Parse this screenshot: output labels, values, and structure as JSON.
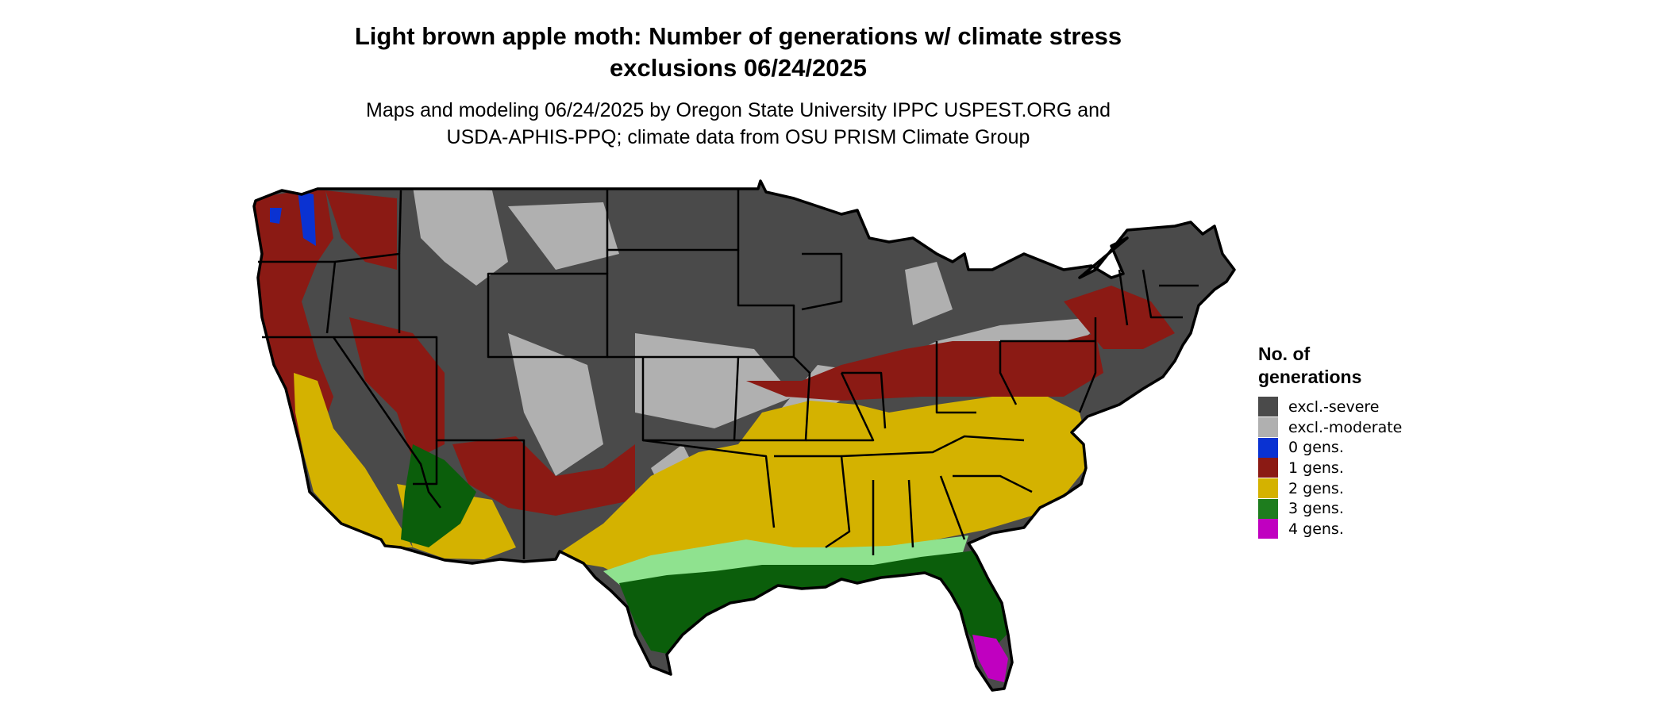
{
  "title": {
    "line1": "Light brown apple moth: Number of generations w/ climate stress",
    "line2": "exclusions 06/24/2025"
  },
  "subtitle": {
    "line1": "Maps and modeling 06/24/2025 by Oregon State University IPPC USPEST.ORG and",
    "line2": "USDA-APHIS-PPQ; climate data from OSU PRISM Climate Group"
  },
  "legend": {
    "title_line1": "No. of",
    "title_line2": "generations",
    "items": [
      {
        "label": "excl.-severe",
        "color": "#4a4a4a"
      },
      {
        "label": "excl.-moderate",
        "color": "#b0b0b0"
      },
      {
        "label": "0 gens.",
        "color": "#0a32d2"
      },
      {
        "label": "1 gens.",
        "color": "#8b1a14"
      },
      {
        "label": "2 gens.",
        "color": "#d4b200"
      },
      {
        "label": "3 gens.",
        "color": "#1e7d1e"
      },
      {
        "label": "4 gens.",
        "color": "#c000c0"
      }
    ]
  },
  "map_colors": {
    "border": "#000000",
    "light_green": "#8fe28f",
    "dark_green": "#0b5e0b"
  }
}
